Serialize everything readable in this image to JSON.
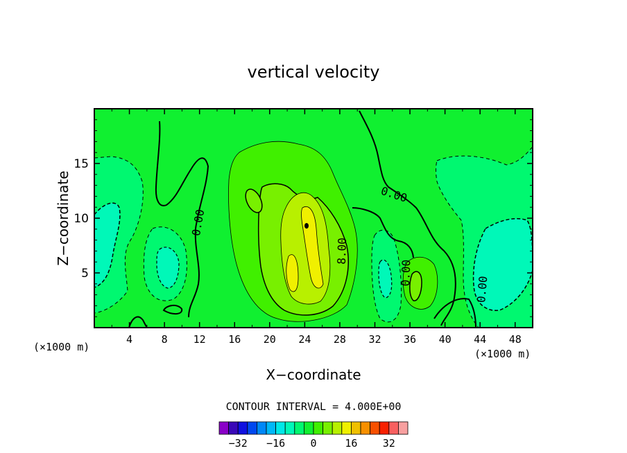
{
  "chart_data": {
    "type": "heatmap",
    "title": "vertical velocity",
    "xlabel": "X−coordinate",
    "ylabel": "Z−coordinate",
    "x_unit_label": "(×1000 m)",
    "y_unit_label": "(×1000 m)",
    "xlim": [
      0,
      50
    ],
    "ylim": [
      0,
      20
    ],
    "x_ticks": [
      4,
      8,
      12,
      16,
      20,
      24,
      28,
      32,
      36,
      40,
      44,
      48
    ],
    "y_ticks": [
      5,
      10,
      15
    ],
    "contour_interval_text": "CONTOUR INTERVAL = 4.000E+00",
    "contour_interval": 4.0,
    "contour_labels": [
      {
        "text": "0.00",
        "x": 11.8,
        "z": 9.6,
        "angle": -80
      },
      {
        "text": "0.00",
        "x": 34.2,
        "z": 12.2,
        "angle": 18
      },
      {
        "text": "0.00",
        "x": 35.5,
        "z": 5.0,
        "angle": -88
      },
      {
        "text": "8.00",
        "x": 28.2,
        "z": 7.0,
        "angle": -88
      },
      {
        "text": "0.00",
        "x": 44.2,
        "z": 3.5,
        "angle": -85
      }
    ],
    "colorbar": {
      "levels": [
        -36,
        -32,
        -28,
        -24,
        -20,
        -16,
        -12,
        -8,
        -4,
        0,
        4,
        8,
        12,
        16,
        20,
        24,
        28,
        32,
        36
      ],
      "tick_labels": [
        "−32",
        "−16",
        "0",
        "16",
        "32"
      ],
      "tick_values": [
        -32,
        -16,
        0,
        16,
        32
      ],
      "colors": [
        "#8a00c8",
        "#3a08b8",
        "#1010e0",
        "#0048f0",
        "#0088f8",
        "#00b8f8",
        "#00e8e8",
        "#00f8b8",
        "#00f870",
        "#10f030",
        "#40f000",
        "#78f000",
        "#b8f000",
        "#f0f000",
        "#f0c000",
        "#f89000",
        "#f85000",
        "#f82000",
        "#f86060",
        "#f8a0a0"
      ]
    },
    "grid": false
  }
}
